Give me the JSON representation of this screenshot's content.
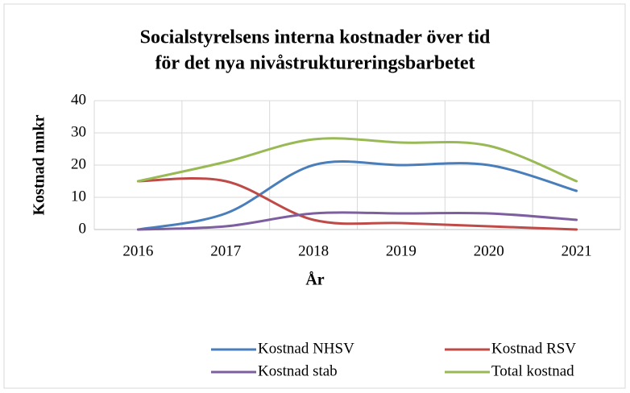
{
  "chart_data": {
    "type": "line",
    "title": [
      "Socialstyrelsens interna kostnader över tid",
      "för det nya nivåstruktureringsbarbetet"
    ],
    "x_label": "År",
    "y_label": "Kostnad mnkr",
    "categories": [
      "2016",
      "2017",
      "2018",
      "2019",
      "2020",
      "2021"
    ],
    "series": [
      {
        "name": "Kostnad NHSV",
        "color": "#4a7ebb",
        "values": [
          0,
          5,
          20,
          20,
          20,
          12
        ]
      },
      {
        "name": "Kostnad RSV",
        "color": "#be4b48",
        "values": [
          15,
          15,
          3,
          2,
          1,
          0
        ]
      },
      {
        "name": "Kostnad stab",
        "color": "#7d5fa0",
        "values": [
          0,
          1,
          5,
          5,
          5,
          3
        ]
      },
      {
        "name": "Total kostnad",
        "color": "#98b954",
        "values": [
          15,
          21,
          28,
          27,
          26,
          15
        ]
      }
    ],
    "ylim": [
      0,
      40
    ],
    "yticks": [
      0,
      10,
      20,
      30,
      40
    ],
    "grid": true,
    "smooth": true,
    "legend": "bottom"
  }
}
